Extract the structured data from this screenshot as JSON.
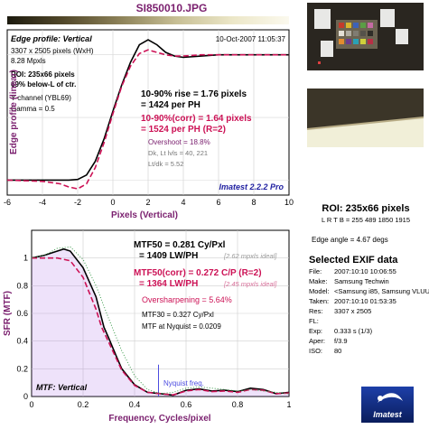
{
  "header": {
    "filename": "SI850010.JPG",
    "gradient_colors": [
      "#1c1a0e",
      "#52482a",
      "#8c8158",
      "#c7bf95",
      "#ece7c8",
      "#fbf9ee"
    ]
  },
  "panel_top": {
    "heading": "Edge profile: Vertical",
    "timestamp": "10-Oct-2007 11:05:37",
    "info_lines": [
      "3307 x 2505 pixels (WxH)",
      "8.28 Mpxls"
    ],
    "roi_lines": [
      "ROI: 235x66 pixels",
      "69% below-L of ctr."
    ],
    "channel_lines": [
      "Y-channel  (YBL69)",
      "Gamma = 0.5"
    ],
    "rise_lines": [
      "10-90% rise = 1.76 pixels",
      "= 1424 per PH"
    ],
    "rise_corr_lines": [
      "10-90%(corr) = 1.64 pixels",
      "= 1524 per PH    (R=2)"
    ],
    "overshoot": "Overshoot = 18.8%",
    "stat_lines": [
      "Dk, Lt lvls = 40, 221",
      "Lt/dk = 5.52"
    ],
    "brand": "Imatest 2.2.2 Pro"
  },
  "panel_bottom": {
    "heading": "MTF: Vertical",
    "mtf50_line": "MTF50 = 0.281 Cy/Pxl",
    "mtf50_ph": "= 1409 LW/PH",
    "mtf50_ideal": "[2.62 mpxls ideal]",
    "mtf50c_line": "MTF50(corr) = 0.272 C/P   (R=2)",
    "mtf50c_ph": "= 1364 LW/PH",
    "mtf50c_ideal": "[2.45 mpxls ideal]",
    "oversharpening": "Oversharpening = 5.64%",
    "mtf30": "MTF30 = 0.327 Cy/Pxl",
    "mtf_nyq": "MTF at Nyquist = 0.0209",
    "nyquist_label": "Nyquist freq."
  },
  "right_panel": {
    "roi_title": "ROI: 235x66 pixels",
    "roi_coords": "L R T B = 255 489  1850 1915",
    "edge_angle": "Edge angle = 4.67 degs",
    "exif_title": "Selected EXIF data",
    "exif": [
      {
        "k": "File:",
        "v": "2007:10:10 10:06:55"
      },
      {
        "k": "Make:",
        "v": "Samsung Techwin"
      },
      {
        "k": "Model:",
        "v": "<Samsung i85, Samsung VLUU"
      },
      {
        "k": "Taken:",
        "v": "2007:10:10 01:53:35"
      },
      {
        "k": "Res:",
        "v": "3307 x 2505"
      },
      {
        "k": "FL:",
        "v": ""
      },
      {
        "k": "Exp:",
        "v": "0.333 s (1/3)"
      },
      {
        "k": "Aper:",
        "v": "f/3.9"
      },
      {
        "k": "ISO:",
        "v": "80"
      }
    ],
    "logo_text": "Imatest"
  },
  "colors": {
    "measured": "#000000",
    "corrected": "#cc1155",
    "purple": "#7a1f6e",
    "blue": "#1e1ea0",
    "fill": "#b37be8",
    "nyquist": "#4b4be0"
  },
  "chart_data": [
    {
      "type": "line",
      "title": "Edge profile: Vertical",
      "xlabel": "Pixels (Vertical)",
      "ylabel": "Edge profile (linear)",
      "xlim": [
        -6,
        10
      ],
      "x_ticks": [
        -6,
        -4,
        -2,
        0,
        2,
        4,
        6,
        8,
        10
      ],
      "grid": true,
      "series": [
        {
          "x": [
            -6,
            -4,
            -3,
            -2.5,
            -2,
            -1.5,
            -1,
            -0.5,
            0,
            0.5,
            1,
            1.5,
            2,
            2.5,
            3,
            3.5,
            4,
            5,
            6,
            8,
            10
          ],
          "y": [
            0.0,
            0.0,
            0.0,
            0.0,
            0.005,
            0.04,
            0.15,
            0.33,
            0.55,
            0.76,
            0.94,
            1.08,
            1.12,
            1.08,
            1.02,
            0.99,
            0.98,
            0.99,
            1.0,
            1.0,
            1.0
          ]
        },
        {
          "x": [
            -6,
            -4,
            -3,
            -2.5,
            -2,
            -1.5,
            -1,
            -0.5,
            0,
            0.5,
            1,
            1.5,
            2,
            2.5,
            3,
            3.5,
            4,
            5,
            6,
            8,
            10
          ],
          "y": [
            0.0,
            -0.01,
            -0.03,
            -0.055,
            -0.07,
            -0.03,
            0.1,
            0.3,
            0.53,
            0.75,
            0.91,
            1.01,
            1.04,
            1.02,
            1.0,
            0.99,
            0.99,
            1.0,
            1.0,
            1.0,
            1.0
          ]
        }
      ]
    },
    {
      "type": "line",
      "title": "MTF: Vertical",
      "xlabel": "Frequency, Cycles/pixel",
      "ylabel": "SFR (MTF)",
      "xlim": [
        0,
        1
      ],
      "ylim": [
        0,
        1.2
      ],
      "x_ticks": [
        0,
        0.2,
        0.4,
        0.6,
        0.8,
        1
      ],
      "y_ticks": [
        0,
        0.2,
        0.4,
        0.6,
        0.8,
        1
      ],
      "grid": true,
      "series": [
        {
          "x": [
            0,
            0.05,
            0.1,
            0.125,
            0.15,
            0.2,
            0.25,
            0.281,
            0.3,
            0.327,
            0.35,
            0.4,
            0.45,
            0.5,
            0.55,
            0.6,
            0.65,
            0.7,
            0.75,
            0.8,
            0.85,
            0.9,
            0.95,
            1.0
          ],
          "y": [
            1.0,
            1.02,
            1.05,
            1.065,
            1.05,
            0.93,
            0.72,
            0.5,
            0.42,
            0.3,
            0.2,
            0.085,
            0.03,
            0.0209,
            0.01,
            0.045,
            0.055,
            0.04,
            0.045,
            0.035,
            0.06,
            0.05,
            0.02,
            0.03
          ]
        },
        {
          "x": [
            0,
            0.05,
            0.1,
            0.15,
            0.2,
            0.25,
            0.272,
            0.3,
            0.35,
            0.4,
            0.45,
            0.5,
            0.55,
            0.6,
            0.65,
            0.7,
            0.75,
            0.8,
            0.85,
            0.9,
            0.95,
            1.0
          ],
          "y": [
            1.0,
            1.0,
            1.0,
            0.98,
            0.86,
            0.63,
            0.5,
            0.39,
            0.19,
            0.08,
            0.03,
            0.02,
            0.012,
            0.04,
            0.05,
            0.035,
            0.04,
            0.03,
            0.05,
            0.045,
            0.02,
            0.025
          ]
        },
        {
          "x": [
            0,
            0.05,
            0.1,
            0.15,
            0.2,
            0.25,
            0.3,
            0.35,
            0.4,
            0.45,
            0.5,
            0.55,
            0.6,
            0.65,
            0.7,
            0.75,
            0.8,
            0.85,
            0.9,
            0.95,
            1.0
          ],
          "y": [
            1.0,
            1.02,
            1.07,
            1.08,
            0.99,
            0.8,
            0.56,
            0.33,
            0.15,
            0.05,
            0.02,
            0.03,
            0.06,
            0.07,
            0.06,
            0.05,
            0.04,
            0.05,
            0.04,
            0.03,
            0.02
          ]
        }
      ],
      "nyquist_x": 0.5
    }
  ]
}
